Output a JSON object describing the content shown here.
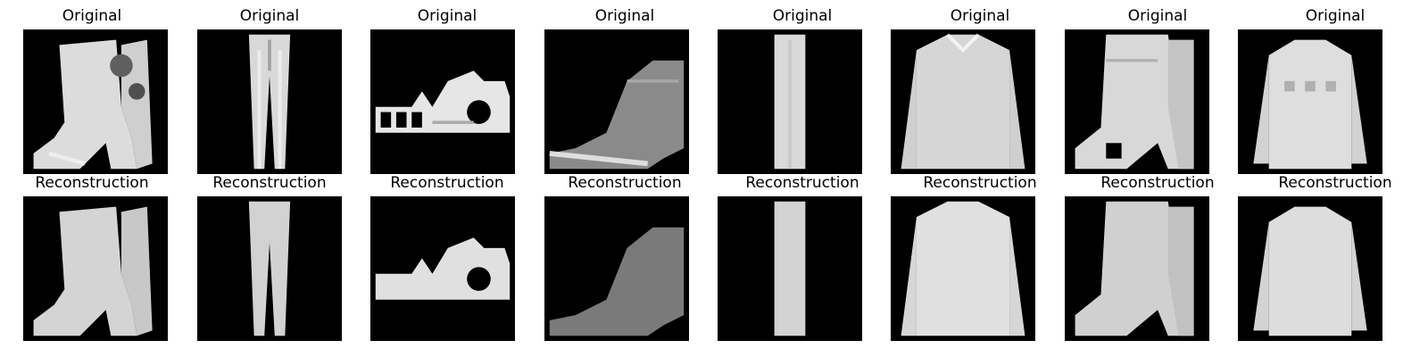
{
  "figure": {
    "rows": [
      {
        "label": "Original"
      },
      {
        "label": "Reconstruction"
      }
    ],
    "columns": [
      {
        "item": "ankle-boot"
      },
      {
        "item": "trouser"
      },
      {
        "item": "sandal"
      },
      {
        "item": "ankle-boot"
      },
      {
        "item": "trouser"
      },
      {
        "item": "shirt"
      },
      {
        "item": "ankle-boot"
      },
      {
        "item": "pullover"
      }
    ],
    "colors": {
      "background": "#000000",
      "garment_light": "#e6e6e6",
      "garment_mid": "#bdbdbd",
      "garment_dark": "#6e6e6e"
    }
  }
}
